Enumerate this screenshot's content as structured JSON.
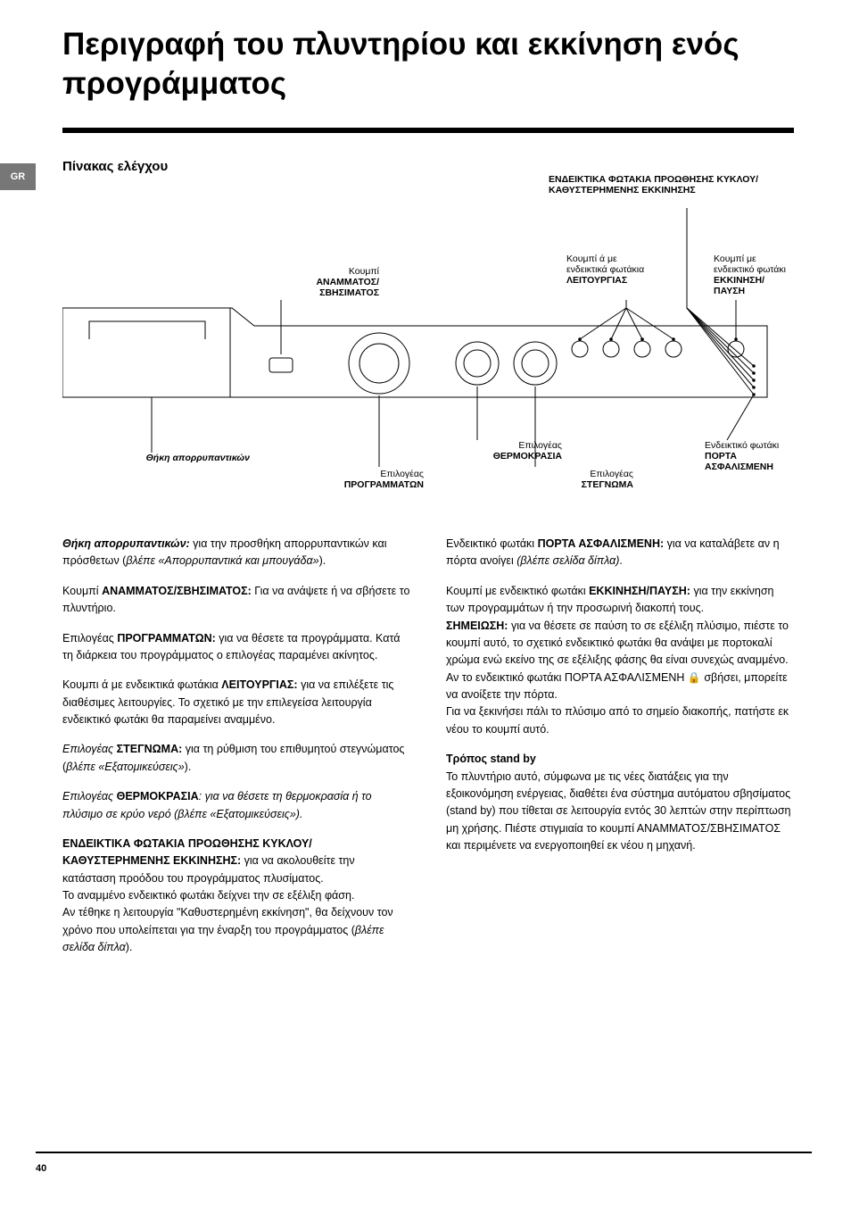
{
  "title": "Περιγραφή του πλυντηρίου και εκκίνηση ενός προγράμματος",
  "lang_tab": "GR",
  "section_title": "Πίνακας ελέγχου",
  "diagram": {
    "labels": {
      "cycle_lights_title": "ΕΝΔΕΙΚΤΙΚΑ ΦΩΤΑΚΙΑ ΠΡΟΩΘΗΣΗΣ ΚΥΚΛΟΥ/\nΚΑΘΥΣΤΕΡΗΜΕΝΗΣ ΕΚΚΙΝΗΣΗΣ",
      "onoff_pre": "Κουμπί",
      "onoff_bold": "ΑΝΑΜΜΑΤΟΣ/\nΣΒΗΣΙΜΑΤΟΣ",
      "func_pre": "Κουμπί ά με\nενδεικτικά φωτάκια",
      "func_bold": "ΛΕΙΤΟΥΡΓΙΑΣ",
      "start_pre": "Κουμπί με\nενδεικτικό φωτάκι",
      "start_bold": "ΕΚΚΙΝΗΣΗ/\nΠΑΥΣΗ",
      "drawer_bold": "Θήκη απορρυπαντικών",
      "prog_pre": "Επιλογέας",
      "prog_bold": "ΠΡΟΓΡΑΜΜΑΤΩΝ",
      "temp_pre": "Επιλογέας",
      "temp_bold": "ΘΕΡΜΟΚΡΑΣΙΑ",
      "spin_pre": "Επιλογέας",
      "spin_bold": "ΣΤΕΓΝΩΜΑ",
      "door_pre": "Ενδεικτικό φωτάκι",
      "door_bold": "ΠΟΡΤΑ\nΑΣΦΑΛΙΣΜΕΝΗ"
    },
    "colors": {
      "stroke": "#000000",
      "bg": "#ffffff"
    }
  },
  "left_column": [
    {
      "parts": [
        {
          "t": "Θήκη απορρυπαντικών:",
          "b": true,
          "i": true
        },
        {
          "t": " για την προσθήκη απορρυπαντικών και πρόσθετων ("
        },
        {
          "t": "βλέπε «Απορρυπαντικά και μπουγάδα»",
          "i": true
        },
        {
          "t": ")."
        }
      ]
    },
    {
      "parts": [
        {
          "t": "Κουμπί "
        },
        {
          "t": "ΑΝΑΜΜΑΤΟΣ/ΣΒΗΣΙΜΑΤΟΣ:",
          "b": true
        },
        {
          "t": " Για να ανάψετε ή να σβήσετε το πλυντήριο."
        }
      ]
    },
    {
      "parts": [
        {
          "t": "Επιλογέας "
        },
        {
          "t": "ΠΡΟΓΡΑΜΜΑΤΩΝ:",
          "b": true
        },
        {
          "t": " για να θέσετε τα προγράμματα. Κατά τη διάρκεια του προγράμματος ο επιλογέας παραμένει ακίνητος."
        }
      ]
    },
    {
      "parts": [
        {
          "t": "Κουμπι ά με ενδεικτικά φωτάκια "
        },
        {
          "t": "ΛΕΙΤΟΥΡΓΙΑΣ:",
          "b": true
        },
        {
          "t": " για να επιλέξετε τις διαθέσιμες λειτουργίες. Το σχετικό με την επιλεγείσα λειτουργία ενδεικτικό φωτάκι θα παραμείνει αναμμένο."
        }
      ]
    },
    {
      "parts": [
        {
          "t": "Επιλογέας ",
          "i": true
        },
        {
          "t": "ΣΤΕΓΝΩΜΑ:",
          "b": true
        },
        {
          "t": " για τη ρύθμιση του επιθυμητού στεγνώματος ("
        },
        {
          "t": "βλέπε «Εξατομικεύσεις»",
          "i": true
        },
        {
          "t": ")."
        }
      ]
    },
    {
      "parts": [
        {
          "t": "Επιλογέας ",
          "i": true
        },
        {
          "t": "ΘΕΡΜΟΚΡΑΣΙΑ",
          "b": true
        },
        {
          "t": ": για να θέσετε τη θερμοκρασία ή το πλύσιμο σε κρύο νερό (",
          "i": true
        },
        {
          "t": "βλέπε «Εξατομικεύσεις»",
          "i": true
        },
        {
          "t": ").",
          "i": true
        }
      ]
    },
    {
      "parts": [
        {
          "t": "ΕΝΔΕΙΚΤΙΚΑ ΦΩΤΑΚΙΑ ΠΡΟΩΘΗΣΗΣ ΚΥΚΛΟΥ/ΚΑΘΥΣΤΕΡΗΜΕΝΗΣ ΕΚΚΙΝΗΣΗΣ:",
          "b": true
        },
        {
          "t": " για να ακολουθείτε την κατάσταση προόδου του προγράμματος πλυσίματος.\nΤο αναμμένο ενδεικτικό φωτάκι δείχνει την σε εξέλιξη φάση.\nΑν τέθηκε η λειτουργία \"Καθυστερημένη εκκίνηση\", θα δείχνουν τον χρόνο που υπολείπεται για την έναρξη του προγράμματος ("
        },
        {
          "t": "βλέπε σελίδα δίπλα",
          "i": true
        },
        {
          "t": ")."
        }
      ]
    }
  ],
  "right_column": [
    {
      "parts": [
        {
          "t": "Ενδεικτικό φωτάκι "
        },
        {
          "t": "ΠΟΡΤΑ ΑΣΦΑΛΙΣΜΕΝΗ:",
          "b": true
        },
        {
          "t": " για να καταλάβετε αν η πόρτα ανοίγει "
        },
        {
          "t": "(βλέπε σελίδα δίπλα)",
          "i": true
        },
        {
          "t": "."
        }
      ]
    },
    {
      "parts": [
        {
          "t": "Κουμπί με ενδεικτικό φωτάκι "
        },
        {
          "t": "ΕΚΚΙΝΗΣΗ/ΠΑΥΣΗ:",
          "b": true
        },
        {
          "t": " για την εκκίνηση των προγραμμάτων ή την προσωρινή διακοπή τους.\n"
        },
        {
          "t": "ΣΗΜΕΙΩΣΗ:",
          "b": true
        },
        {
          "t": " για να θέσετε σε παύση το σε εξέλιξη πλύσιμο, πιέστε το κουμπί αυτό, το σχετικό ενδεικτικό φωτάκι θα ανάψει με πορτοκαλί χρώμα ενώ εκείνο της σε εξέλιξης φάσης θα είναι συνεχώς αναμμένο. Αν το ενδεικτικό φωτάκι ΠΟΡΤΑ ΑΣΦΑΛΙΣΜΕΝΗ "
        },
        {
          "t": "🔒",
          "lock": true
        },
        {
          "t": " σβήσει, μπορείτε να ανοίξετε την πόρτα.\nΓια να ξεκινήσει πάλι το πλύσιμο από το σημείο διακοπής, πατήστε εκ νέου το κουμπί αυτό."
        }
      ]
    },
    {
      "parts": [
        {
          "t": "Τρόπος stand by",
          "b": true
        },
        {
          "t": "\nΤο πλυντήριο αυτό, σύμφωνα με τις νέες διατάξεις για την εξοικονόμηση ενέργειας, διαθέτει ένα σύστημα αυτόματου σβησίματος (stand by) που τίθεται σε λειτουργία εντός 30 λεπτών στην περίπτωση μη χρήσης. Πιέστε στιγμιαία το κουμπί ΑΝΑΜΜΑΤΟΣ/ΣΒΗΣΙΜΑΤΟΣ και περιμένετε να ενεργοποιηθεί εκ νέου η μηχανή."
        }
      ]
    }
  ],
  "page_number": "40"
}
